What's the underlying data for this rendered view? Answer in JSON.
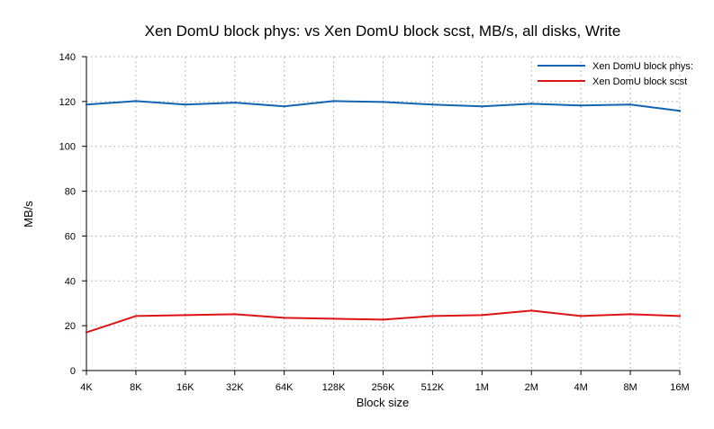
{
  "chart_data": {
    "type": "line",
    "title": "Xen DomU block phys: vs Xen DomU block scst, MB/s, all disks, Write",
    "xlabel": "Block size",
    "ylabel": "MB/s",
    "categories": [
      "4K",
      "8K",
      "16K",
      "32K",
      "64K",
      "128K",
      "256K",
      "512K",
      "1M",
      "2M",
      "4M",
      "8M",
      "16M"
    ],
    "ylim": [
      0,
      140
    ],
    "yticks": [
      0,
      20,
      40,
      60,
      80,
      100,
      120,
      140
    ],
    "grid": true,
    "legend_position": "top-right",
    "series": [
      {
        "name": "Xen DomU block phys:",
        "color": "#1464b4",
        "values": [
          118.6,
          120.2,
          118.6,
          119.5,
          117.8,
          120.2,
          119.8,
          118.6,
          117.8,
          119.0,
          118.2,
          118.6,
          115.8
        ]
      },
      {
        "name": "Xen DomU block scst",
        "color": "#dc1414",
        "values": [
          17.0,
          24.3,
          24.7,
          25.1,
          23.5,
          23.1,
          22.7,
          24.3,
          24.7,
          26.7,
          24.3,
          25.1,
          24.3
        ]
      }
    ]
  }
}
